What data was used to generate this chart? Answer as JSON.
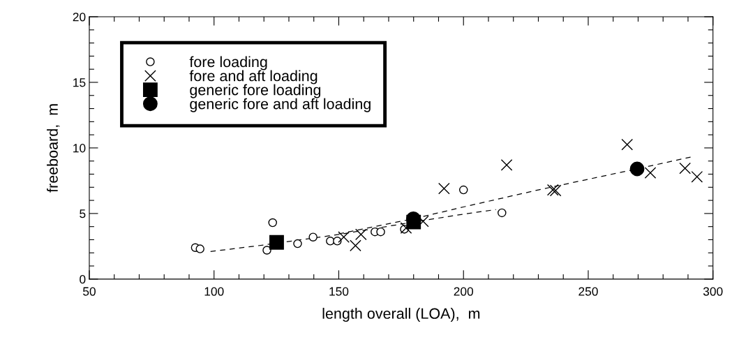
{
  "chart_data": {
    "type": "scatter",
    "xlabel": "length overall (LOA),  m",
    "ylabel": "freeboard,  m",
    "xlim": [
      50,
      300
    ],
    "ylim": [
      0,
      20
    ],
    "xticks": [
      50,
      {
        "value": 60,
        "label": null
      },
      {
        "value": 70,
        "label": null
      },
      {
        "value": 80,
        "label": null
      },
      {
        "value": 90,
        "label": null
      },
      100,
      {
        "value": 110,
        "label": null
      },
      {
        "value": 120,
        "label": null
      },
      {
        "value": 130,
        "label": null
      },
      {
        "value": 140,
        "label": null
      },
      150,
      {
        "value": 160,
        "label": null
      },
      {
        "value": 170,
        "label": null
      },
      {
        "value": 180,
        "label": null
      },
      {
        "value": 190,
        "label": null
      },
      200,
      {
        "value": 210,
        "label": null
      },
      {
        "value": 220,
        "label": null
      },
      {
        "value": 230,
        "label": null
      },
      {
        "value": 240,
        "label": null
      },
      250,
      {
        "value": 260,
        "label": null
      },
      {
        "value": 270,
        "label": null
      },
      {
        "value": 280,
        "label": null
      },
      {
        "value": 290,
        "label": null
      },
      300
    ],
    "yticks": [
      0,
      {
        "value": 1,
        "label": null
      },
      {
        "value": 2,
        "label": null
      },
      {
        "value": 3,
        "label": null
      },
      {
        "value": 4,
        "label": null
      },
      5,
      {
        "value": 6,
        "label": null
      },
      {
        "value": 7,
        "label": null
      },
      {
        "value": 8,
        "label": null
      },
      {
        "value": 9,
        "label": null
      },
      10,
      {
        "value": 11,
        "label": null
      },
      {
        "value": 12,
        "label": null
      },
      {
        "value": 13,
        "label": null
      },
      {
        "value": 14,
        "label": null
      },
      15,
      {
        "value": 16,
        "label": null
      },
      {
        "value": 17,
        "label": null
      },
      {
        "value": 18,
        "label": null
      },
      {
        "value": 19,
        "label": null
      },
      20
    ],
    "grid": false,
    "legend": "top left",
    "series": [
      {
        "name": "fore loading",
        "color": "#000000",
        "marker": "circle",
        "x": [
          92.5,
          94.4,
          121.2,
          123.5,
          133.5,
          139.7,
          146.6,
          149.4,
          164.5,
          166.8,
          176.3,
          200,
          215.4
        ],
        "values": [
          2.4,
          2.3,
          2.2,
          4.3,
          2.7,
          3.2,
          2.9,
          2.9,
          3.6,
          3.6,
          3.8,
          6.8,
          5.05
        ]
      },
      {
        "name": "fore and aft loading",
        "color": "#000000",
        "marker": "cross",
        "x": [
          152,
          156.7,
          158.9,
          177,
          183.8,
          192.2,
          217.3,
          235.8,
          236.9,
          265.6,
          274.9,
          288.8,
          293.6
        ],
        "values": [
          3.2,
          2.55,
          3.4,
          3.9,
          4.4,
          6.9,
          8.7,
          6.8,
          6.75,
          10.25,
          8.1,
          8.45,
          7.8
        ]
      },
      {
        "name": "generic fore loading",
        "color": "#000000",
        "marker": "square",
        "x": [
          125.1,
          180
        ],
        "values": [
          2.8,
          4.35
        ]
      },
      {
        "name": "generic fore and aft loading",
        "color": "#000000",
        "marker": "circle",
        "x": [
          179.9,
          269.6
        ],
        "values": [
          4.6,
          8.4
        ]
      },
      {
        "type": "line",
        "color": "#000000",
        "line_style": "dashed",
        "x": [
          98.6,
          120,
          150,
          180,
          200,
          213
        ],
        "values": [
          2.1,
          2.6,
          3.4,
          4.35,
          4.95,
          5.3
        ]
      },
      {
        "type": "line",
        "color": "#000000",
        "line_style": "dashed",
        "x": [
          150,
          180,
          200,
          230,
          269.5,
          291
        ],
        "values": [
          3.45,
          4.6,
          5.5,
          6.8,
          8.4,
          9.3
        ]
      }
    ]
  }
}
